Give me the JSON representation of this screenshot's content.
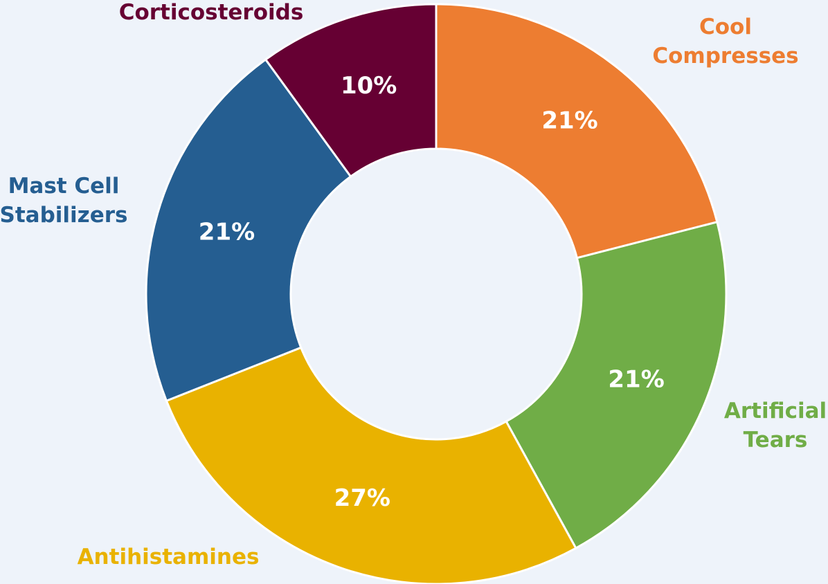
{
  "chart_data": {
    "type": "donut",
    "categories": [
      "Cool Compresses",
      "Artificial Tears",
      "Antihistamines",
      "Mast Cell Stabilizers",
      "Corticosteroids"
    ],
    "values": [
      21,
      21,
      27,
      21,
      10
    ],
    "value_labels": [
      "21%",
      "21%",
      "27%",
      "21%",
      "10%"
    ],
    "colors": [
      "#ed7d31",
      "#70ad47",
      "#e9b200",
      "#255e91",
      "#660033"
    ]
  }
}
